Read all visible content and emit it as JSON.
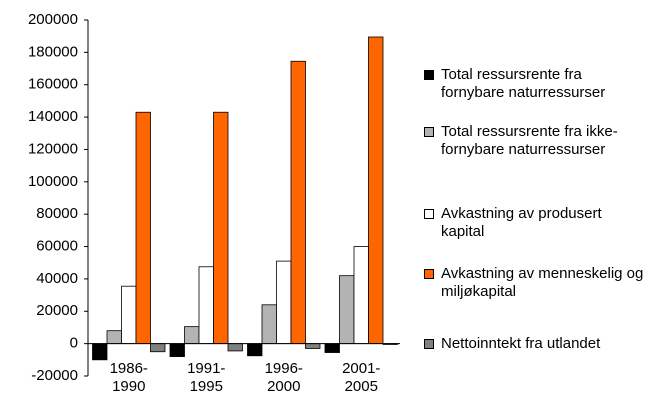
{
  "chart_data": {
    "type": "bar",
    "categories": [
      "1986-1990",
      "1991-1995",
      "1996-2000",
      "2001-2005"
    ],
    "series": [
      {
        "name": "Total ressursrente fra fornybare naturressurser",
        "color": "#000000",
        "values": [
          -10000,
          -8000,
          -7500,
          -5500
        ]
      },
      {
        "name": "Total ressursrente fra ikke-fornybare naturressurser",
        "color": "#b3b3b3",
        "values": [
          8000,
          10500,
          24000,
          42000
        ]
      },
      {
        "name": "Avkastning av produsert kapital",
        "color": "#ffffff",
        "values": [
          35500,
          47500,
          51000,
          60000
        ]
      },
      {
        "name": "Avkastning av menneskelig og miljøkapital",
        "color": "#ff6600",
        "values": [
          143000,
          143000,
          174500,
          189500
        ]
      },
      {
        "name": "Nettoinntekt fra utlandet",
        "color": "#808080",
        "values": [
          -5000,
          -4500,
          -3000,
          -500
        ]
      }
    ],
    "ylim": [
      -20000,
      200000
    ],
    "yticks": [
      -20000,
      0,
      20000,
      40000,
      60000,
      80000,
      100000,
      120000,
      140000,
      160000,
      180000,
      200000
    ],
    "legend": "right"
  }
}
